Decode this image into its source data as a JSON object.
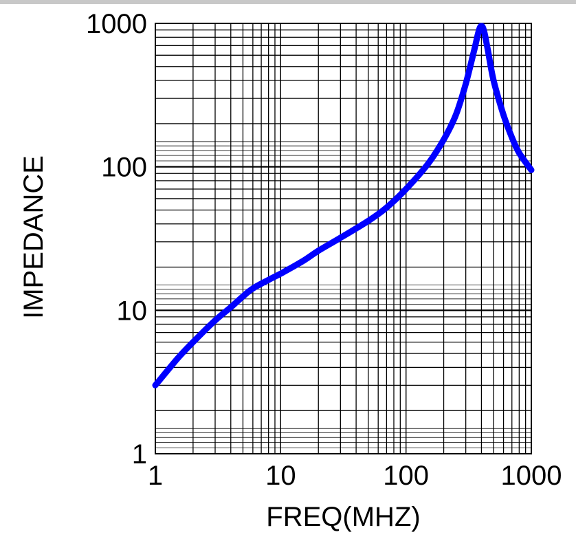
{
  "chart_data": {
    "type": "line",
    "xlabel": "FREQ(MHZ)",
    "ylabel": "IMPEDANCE",
    "x_scale": "log",
    "y_scale": "log",
    "xlim": [
      1,
      1000
    ],
    "ylim": [
      1,
      1000
    ],
    "x_ticks": [
      "1",
      "10",
      "100",
      "1000"
    ],
    "y_ticks": [
      "1",
      "10",
      "100",
      "1000"
    ],
    "grid": true,
    "line_color": "#0000ff",
    "series": [
      {
        "x": [
          1,
          1.5,
          2,
          3,
          4,
          5,
          6,
          8,
          10,
          15,
          20,
          30,
          50,
          70,
          100,
          150,
          200,
          250,
          300,
          350,
          380,
          400,
          420,
          450,
          500,
          600,
          700,
          800,
          1000
        ],
        "y": [
          3,
          4.6,
          6,
          8.5,
          10.5,
          12.5,
          14.2,
          16.3,
          18,
          22,
          26,
          32,
          42,
          52,
          70,
          105,
          155,
          230,
          380,
          650,
          880,
          960,
          880,
          650,
          400,
          230,
          160,
          125,
          95
        ]
      }
    ]
  }
}
